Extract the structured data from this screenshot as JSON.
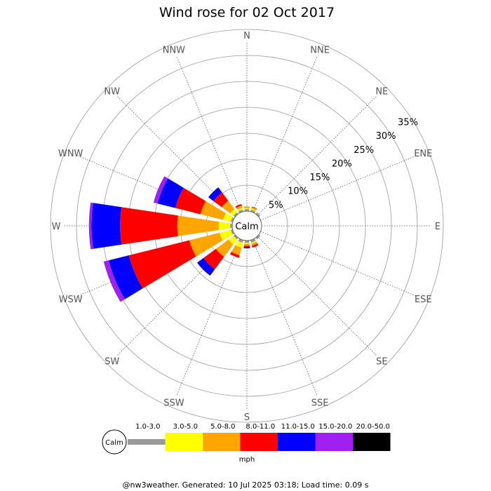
{
  "chart_data": {
    "type": "windrose",
    "title": "Wind rose for 02 Oct 2017",
    "directions": [
      "N",
      "NNE",
      "NE",
      "ENE",
      "E",
      "ESE",
      "SE",
      "SSE",
      "S",
      "SSW",
      "SW",
      "WSW",
      "W",
      "WNW",
      "NW",
      "NNW"
    ],
    "ring_labels": [
      "5%",
      "10%",
      "15%",
      "20%",
      "25%",
      "30%",
      "35%"
    ],
    "ring_values": [
      5,
      10,
      15,
      20,
      25,
      30,
      35
    ],
    "calm_label": "Calm",
    "calm_radius_pct": 3.2,
    "bins": [
      "1.0-3.0",
      "3.0-5.0",
      "5.0-8.0",
      "8.0-11.0",
      "11.0-15.0",
      "15.0-20.0",
      "20.0-50.0"
    ],
    "bin_colors": [
      "#999999",
      "#ffff00",
      "#ffa500",
      "#ff0000",
      "#0000ff",
      "#a020f0",
      "#000000"
    ],
    "unit": "mph",
    "series": [
      {
        "direction": "SE",
        "values": [
          0.4,
          0,
          0,
          0,
          0,
          0,
          0
        ]
      },
      {
        "direction": "SSE",
        "values": [
          0.5,
          0.2,
          0.4,
          0.4,
          0,
          0,
          0
        ]
      },
      {
        "direction": "S",
        "values": [
          0.4,
          0.2,
          0.4,
          0.3,
          0.2,
          0,
          0
        ]
      },
      {
        "direction": "SSW",
        "values": [
          0.5,
          1.0,
          1.5,
          0.5,
          0,
          0,
          0
        ]
      },
      {
        "direction": "SW",
        "values": [
          0.4,
          1.2,
          3.0,
          3.0,
          1.5,
          0,
          0
        ]
      },
      {
        "direction": "WSW",
        "values": [
          0.4,
          2.2,
          6.0,
          12.0,
          4.0,
          1.0,
          0
        ]
      },
      {
        "direction": "W",
        "values": [
          0.4,
          2.2,
          8.0,
          11.0,
          5.5,
          0.5,
          0
        ]
      },
      {
        "direction": "WNW",
        "values": [
          0.4,
          1.5,
          4.5,
          5.0,
          3.5,
          0.8,
          0
        ]
      },
      {
        "direction": "NW",
        "values": [
          0.4,
          0.8,
          2.0,
          2.0,
          1.2,
          0,
          0
        ]
      },
      {
        "direction": "NNW",
        "values": [
          0.4,
          0.4,
          0.4,
          0.3,
          0,
          0,
          0
        ]
      },
      {
        "direction": "N",
        "values": [
          0.4,
          0.2,
          0.3,
          0,
          0,
          0,
          0
        ]
      },
      {
        "direction": "NNE",
        "values": [
          0.4,
          0.2,
          0.3,
          0.1,
          0,
          0,
          0
        ]
      },
      {
        "direction": "NE",
        "values": [
          0.4,
          0,
          0,
          0,
          0,
          0,
          0
        ]
      }
    ]
  },
  "footer": "@nw3weather. Generated: 10 Jul 2025 03:18; Load time: 0.09 s",
  "legend_calm": "Calm"
}
